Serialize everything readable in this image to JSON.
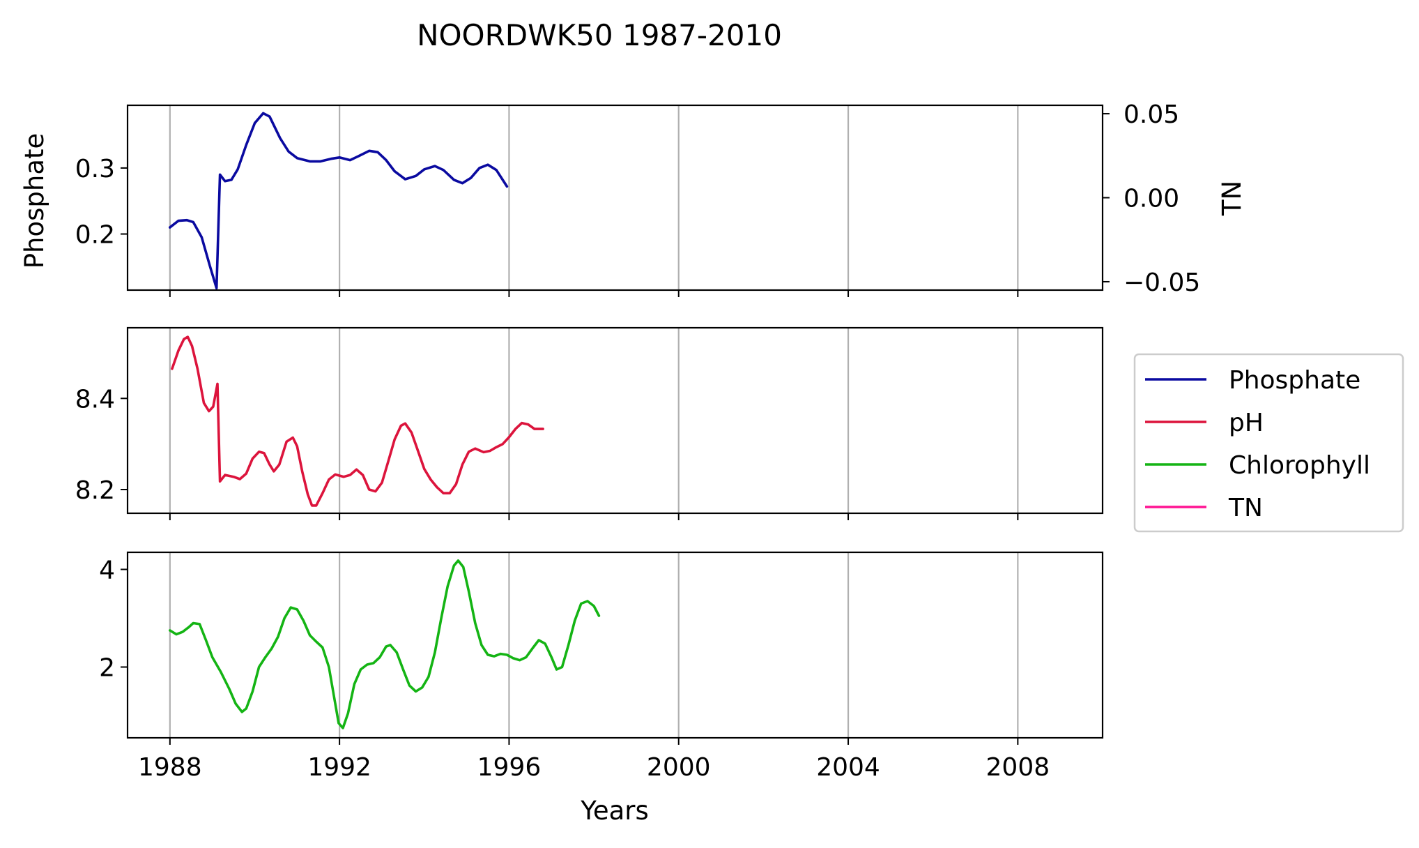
{
  "chart_data": {
    "type": "line",
    "title": "NOORDWK50 1987-2010",
    "xlabel": "Years",
    "xlim": [
      1987.0,
      2010.0
    ],
    "x_ticks": [
      "1988",
      "1992",
      "1996",
      "2000",
      "2004",
      "2008"
    ],
    "grid": "vertical",
    "legend_placement": "right",
    "legend": [
      {
        "name": "Phosphate",
        "color": "#0a0aa0"
      },
      {
        "name": "pH",
        "color": "#dc143c"
      },
      {
        "name": "Chlorophyll",
        "color": "#14b414"
      },
      {
        "name": "TN",
        "color": "#ff1493"
      }
    ],
    "panels": [
      {
        "id": "phosphate",
        "ylabel": "Phosphate",
        "ylim": [
          0.115,
          0.395
        ],
        "y_ticks": [
          "0.2",
          "0.3"
        ],
        "right_axis": {
          "ylabel": "TN",
          "ylim": [
            -0.055,
            0.055
          ],
          "y_ticks": [
            "−0.05",
            "0.00",
            "0.05"
          ]
        },
        "series": [
          {
            "name": "Phosphate",
            "color": "#0a0aa0",
            "points": [
              [
                1988.0,
                0.21
              ],
              [
                1988.2,
                0.22
              ],
              [
                1988.4,
                0.221
              ],
              [
                1988.55,
                0.218
              ],
              [
                1988.75,
                0.195
              ],
              [
                1988.95,
                0.15
              ],
              [
                1989.1,
                0.118
              ],
              [
                1989.18,
                0.29
              ],
              [
                1989.3,
                0.28
              ],
              [
                1989.45,
                0.282
              ],
              [
                1989.6,
                0.298
              ],
              [
                1989.8,
                0.335
              ],
              [
                1990.0,
                0.368
              ],
              [
                1990.2,
                0.383
              ],
              [
                1990.35,
                0.378
              ],
              [
                1990.6,
                0.345
              ],
              [
                1990.8,
                0.325
              ],
              [
                1991.0,
                0.315
              ],
              [
                1991.3,
                0.31
              ],
              [
                1991.55,
                0.31
              ],
              [
                1991.8,
                0.314
              ],
              [
                1992.0,
                0.316
              ],
              [
                1992.25,
                0.312
              ],
              [
                1992.45,
                0.318
              ],
              [
                1992.7,
                0.326
              ],
              [
                1992.9,
                0.324
              ],
              [
                1993.1,
                0.312
              ],
              [
                1993.3,
                0.295
              ],
              [
                1993.55,
                0.283
              ],
              [
                1993.8,
                0.288
              ],
              [
                1994.0,
                0.298
              ],
              [
                1994.25,
                0.303
              ],
              [
                1994.45,
                0.297
              ],
              [
                1994.7,
                0.282
              ],
              [
                1994.9,
                0.277
              ],
              [
                1995.1,
                0.285
              ],
              [
                1995.3,
                0.3
              ],
              [
                1995.5,
                0.305
              ],
              [
                1995.7,
                0.297
              ],
              [
                1995.95,
                0.272
              ]
            ]
          }
        ]
      },
      {
        "id": "ph",
        "ylabel": "",
        "ylim": [
          8.148,
          8.555
        ],
        "y_ticks": [
          "8.2",
          "8.4"
        ],
        "series": [
          {
            "name": "pH",
            "color": "#dc143c",
            "points": [
              [
                1988.05,
                8.465
              ],
              [
                1988.2,
                8.505
              ],
              [
                1988.33,
                8.53
              ],
              [
                1988.42,
                8.535
              ],
              [
                1988.52,
                8.515
              ],
              [
                1988.65,
                8.465
              ],
              [
                1988.8,
                8.39
              ],
              [
                1988.92,
                8.372
              ],
              [
                1989.02,
                8.382
              ],
              [
                1989.12,
                8.432
              ],
              [
                1989.18,
                8.218
              ],
              [
                1989.3,
                8.232
              ],
              [
                1989.5,
                8.228
              ],
              [
                1989.65,
                8.223
              ],
              [
                1989.8,
                8.235
              ],
              [
                1989.95,
                8.268
              ],
              [
                1990.1,
                8.283
              ],
              [
                1990.22,
                8.28
              ],
              [
                1990.35,
                8.255
              ],
              [
                1990.45,
                8.24
              ],
              [
                1990.58,
                8.255
              ],
              [
                1990.75,
                8.305
              ],
              [
                1990.9,
                8.314
              ],
              [
                1991.0,
                8.295
              ],
              [
                1991.12,
                8.24
              ],
              [
                1991.25,
                8.19
              ],
              [
                1991.35,
                8.165
              ],
              [
                1991.45,
                8.165
              ],
              [
                1991.6,
                8.192
              ],
              [
                1991.75,
                8.222
              ],
              [
                1991.9,
                8.233
              ],
              [
                1992.1,
                8.228
              ],
              [
                1992.25,
                8.232
              ],
              [
                1992.4,
                8.244
              ],
              [
                1992.55,
                8.232
              ],
              [
                1992.7,
                8.2
              ],
              [
                1992.85,
                8.196
              ],
              [
                1993.0,
                8.215
              ],
              [
                1993.15,
                8.262
              ],
              [
                1993.3,
                8.31
              ],
              [
                1993.45,
                8.34
              ],
              [
                1993.55,
                8.345
              ],
              [
                1993.7,
                8.325
              ],
              [
                1993.85,
                8.285
              ],
              [
                1994.0,
                8.245
              ],
              [
                1994.15,
                8.222
              ],
              [
                1994.3,
                8.205
              ],
              [
                1994.45,
                8.192
              ],
              [
                1994.6,
                8.192
              ],
              [
                1994.75,
                8.212
              ],
              [
                1994.9,
                8.255
              ],
              [
                1995.05,
                8.283
              ],
              [
                1995.2,
                8.29
              ],
              [
                1995.4,
                8.282
              ],
              [
                1995.55,
                8.285
              ],
              [
                1995.7,
                8.293
              ],
              [
                1995.85,
                8.3
              ],
              [
                1996.0,
                8.315
              ],
              [
                1996.15,
                8.333
              ],
              [
                1996.3,
                8.346
              ],
              [
                1996.45,
                8.343
              ],
              [
                1996.6,
                8.333
              ],
              [
                1996.75,
                8.333
              ],
              [
                1996.8,
                8.333
              ]
            ]
          }
        ]
      },
      {
        "id": "chlorophyll",
        "ylabel": "",
        "ylim": [
          0.55,
          4.35
        ],
        "y_ticks": [
          "2",
          "4"
        ],
        "series": [
          {
            "name": "Chlorophyll",
            "color": "#14b414",
            "points": [
              [
                1988.0,
                2.75
              ],
              [
                1988.15,
                2.67
              ],
              [
                1988.3,
                2.72
              ],
              [
                1988.45,
                2.82
              ],
              [
                1988.55,
                2.9
              ],
              [
                1988.7,
                2.88
              ],
              [
                1988.85,
                2.55
              ],
              [
                1989.0,
                2.2
              ],
              [
                1989.2,
                1.9
              ],
              [
                1989.4,
                1.55
              ],
              [
                1989.55,
                1.25
              ],
              [
                1989.7,
                1.08
              ],
              [
                1989.8,
                1.15
              ],
              [
                1989.95,
                1.5
              ],
              [
                1990.1,
                2.0
              ],
              [
                1990.25,
                2.2
              ],
              [
                1990.4,
                2.38
              ],
              [
                1990.55,
                2.62
              ],
              [
                1990.7,
                3.0
              ],
              [
                1990.85,
                3.22
              ],
              [
                1991.0,
                3.18
              ],
              [
                1991.15,
                2.95
              ],
              [
                1991.3,
                2.65
              ],
              [
                1991.45,
                2.52
              ],
              [
                1991.6,
                2.4
              ],
              [
                1991.75,
                2.0
              ],
              [
                1991.88,
                1.35
              ],
              [
                1991.98,
                0.85
              ],
              [
                1992.08,
                0.75
              ],
              [
                1992.2,
                1.05
              ],
              [
                1992.35,
                1.65
              ],
              [
                1992.5,
                1.95
              ],
              [
                1992.65,
                2.05
              ],
              [
                1992.8,
                2.08
              ],
              [
                1992.95,
                2.2
              ],
              [
                1993.1,
                2.42
              ],
              [
                1993.2,
                2.45
              ],
              [
                1993.35,
                2.3
              ],
              [
                1993.5,
                1.95
              ],
              [
                1993.65,
                1.62
              ],
              [
                1993.8,
                1.5
              ],
              [
                1993.95,
                1.58
              ],
              [
                1994.1,
                1.8
              ],
              [
                1994.25,
                2.3
              ],
              [
                1994.4,
                3.0
              ],
              [
                1994.55,
                3.65
              ],
              [
                1994.7,
                4.08
              ],
              [
                1994.8,
                4.18
              ],
              [
                1994.92,
                4.05
              ],
              [
                1995.05,
                3.55
              ],
              [
                1995.2,
                2.9
              ],
              [
                1995.35,
                2.45
              ],
              [
                1995.5,
                2.25
              ],
              [
                1995.65,
                2.22
              ],
              [
                1995.8,
                2.27
              ],
              [
                1995.95,
                2.25
              ],
              [
                1996.1,
                2.18
              ],
              [
                1996.25,
                2.14
              ],
              [
                1996.4,
                2.2
              ],
              [
                1996.55,
                2.38
              ],
              [
                1996.7,
                2.55
              ],
              [
                1996.85,
                2.48
              ],
              [
                1997.0,
                2.2
              ],
              [
                1997.12,
                1.95
              ],
              [
                1997.25,
                2.0
              ],
              [
                1997.4,
                2.45
              ],
              [
                1997.55,
                2.95
              ],
              [
                1997.7,
                3.3
              ],
              [
                1997.85,
                3.35
              ],
              [
                1998.0,
                3.25
              ],
              [
                1998.12,
                3.05
              ]
            ]
          }
        ]
      }
    ]
  }
}
